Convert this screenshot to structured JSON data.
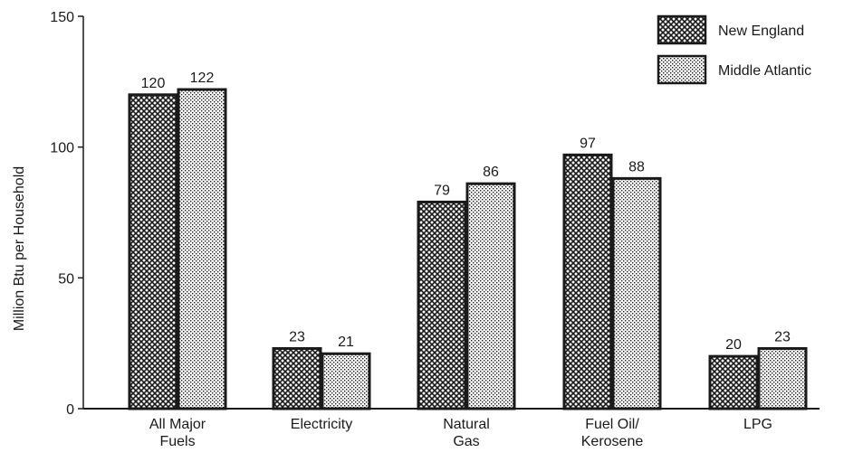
{
  "chart_data": {
    "type": "bar",
    "title": "",
    "xlabel": "",
    "ylabel": "Million Btu per Household",
    "ylim": [
      0,
      150
    ],
    "yticks": [
      0,
      50,
      100,
      150
    ],
    "grid": false,
    "legend_position": "top-right",
    "categories": [
      [
        "All Major",
        "Fuels"
      ],
      [
        "Electricity"
      ],
      [
        "Natural",
        "Gas"
      ],
      [
        "Fuel Oil/",
        "Kerosene"
      ],
      [
        "LPG"
      ]
    ],
    "series": [
      {
        "name": "New England",
        "values": [
          120,
          23,
          79,
          97,
          20
        ],
        "pattern": "crosshatch-dense"
      },
      {
        "name": "Middle Atlantic",
        "values": [
          122,
          21,
          86,
          88,
          23
        ],
        "pattern": "dots-light"
      }
    ],
    "colors": {
      "ink": "#1a1a1a",
      "background": "#ffffff"
    }
  }
}
